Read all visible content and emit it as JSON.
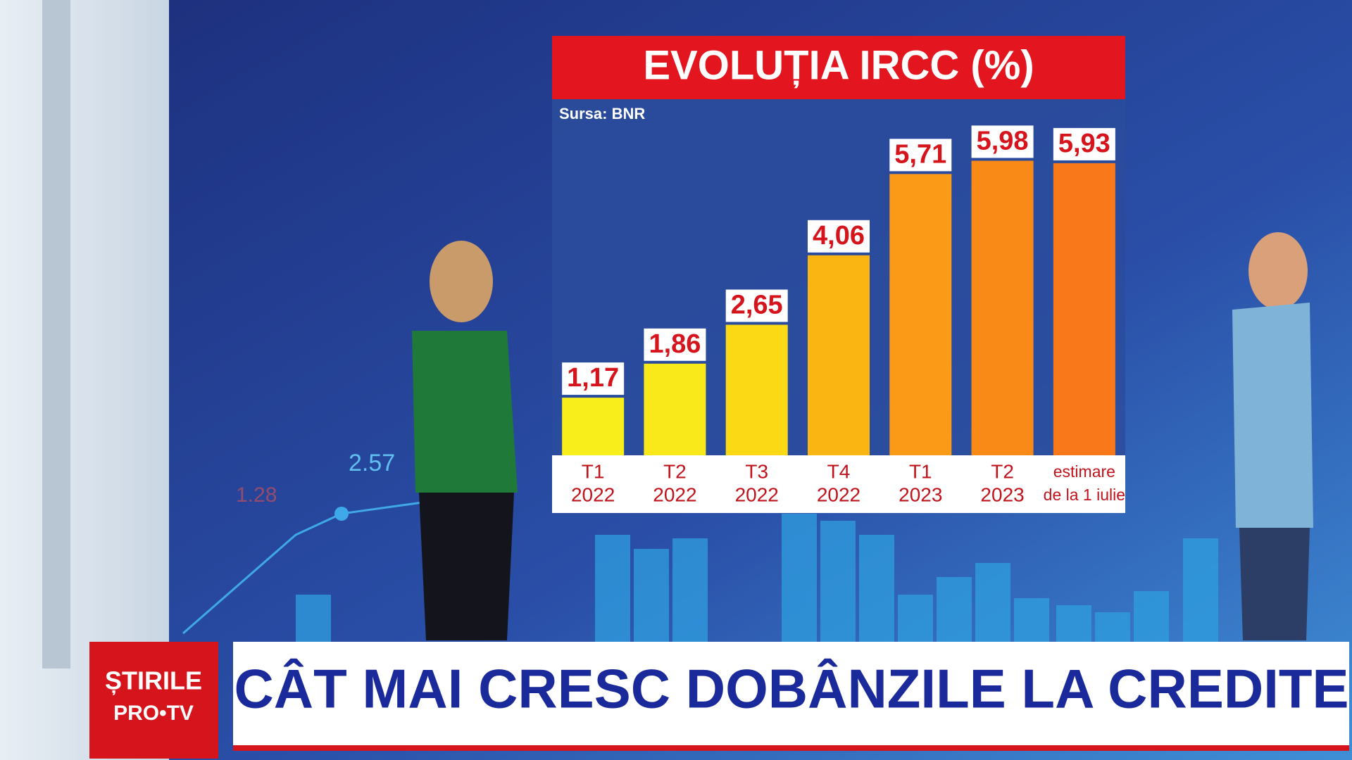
{
  "chart_data": {
    "type": "bar",
    "title": "EVOLUȚIA IRCC (%)",
    "source": "Sursa: BNR",
    "categories": [
      [
        "T1",
        "2022"
      ],
      [
        "T2",
        "2022"
      ],
      [
        "T3",
        "2022"
      ],
      [
        "T4",
        "2022"
      ],
      [
        "T1",
        "2023"
      ],
      [
        "T2",
        "2023"
      ],
      [
        "estimare",
        "de la 1 iulie"
      ]
    ],
    "values": [
      1.17,
      1.86,
      2.65,
      4.06,
      5.71,
      5.98,
      5.93
    ],
    "value_labels": [
      "1,17",
      "1,86",
      "2,65",
      "4,06",
      "5,71",
      "5,98",
      "5,93"
    ],
    "colors": [
      "#f7ee1c",
      "#f9e81a",
      "#fbd914",
      "#fbb512",
      "#fb9a16",
      "#fa8a18",
      "#f9781a"
    ]
  },
  "background_labels": [
    "2.57",
    "1.28"
  ],
  "broadcast": {
    "logo": [
      "ȘTIRILE",
      "PRO•TV"
    ],
    "headline": "CÂT MAI CRESC DOBÂNZILE LA CREDITE"
  }
}
